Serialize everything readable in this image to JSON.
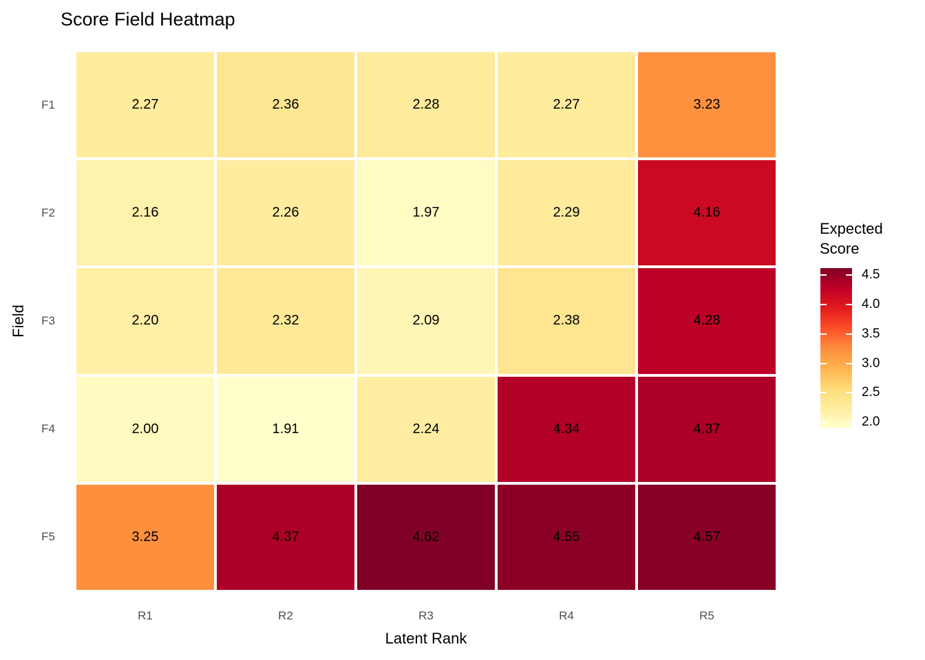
{
  "title": "Score Field Heatmap",
  "chart_data": {
    "type": "heatmap",
    "title": "Score Field Heatmap",
    "xlabel": "Latent Rank",
    "ylabel": "Field",
    "x_categories": [
      "R1",
      "R2",
      "R3",
      "R4",
      "R5"
    ],
    "y_categories": [
      "F1",
      "F2",
      "F3",
      "F4",
      "F5"
    ],
    "values": [
      [
        2.27,
        2.36,
        2.28,
        2.27,
        3.23
      ],
      [
        2.16,
        2.26,
        1.97,
        2.29,
        4.16
      ],
      [
        2.2,
        2.32,
        2.09,
        2.38,
        4.28
      ],
      [
        2.0,
        1.91,
        2.24,
        4.34,
        4.37
      ],
      [
        3.25,
        4.37,
        4.62,
        4.55,
        4.57
      ]
    ],
    "value_format_decimals": 2,
    "legend": {
      "title": "Expected Score",
      "position": "right",
      "tick_values": [
        4.5,
        4.0,
        3.5,
        3.0,
        2.5,
        2.0
      ],
      "tick_labels": [
        "4.5",
        "4.0",
        "3.5",
        "3.0",
        "2.5",
        "2.0"
      ]
    },
    "color_scale": {
      "name": "YlOrRd",
      "domain": [
        1.91,
        4.62
      ],
      "stops": [
        "#FFFFCC",
        "#FFEDA0",
        "#FED976",
        "#FEB24C",
        "#FD8D3C",
        "#FC4E2A",
        "#E31A1C",
        "#BD0026",
        "#800026"
      ]
    },
    "style": {
      "background": "#FFFFFF",
      "cell_text_color": "#000000",
      "axis_tick_color": "#4D4D4D",
      "axis_title_color": "#000000",
      "cell_gap_color": "#FFFFFF",
      "legend_tick_dash_color": "#FFFFFF"
    }
  }
}
